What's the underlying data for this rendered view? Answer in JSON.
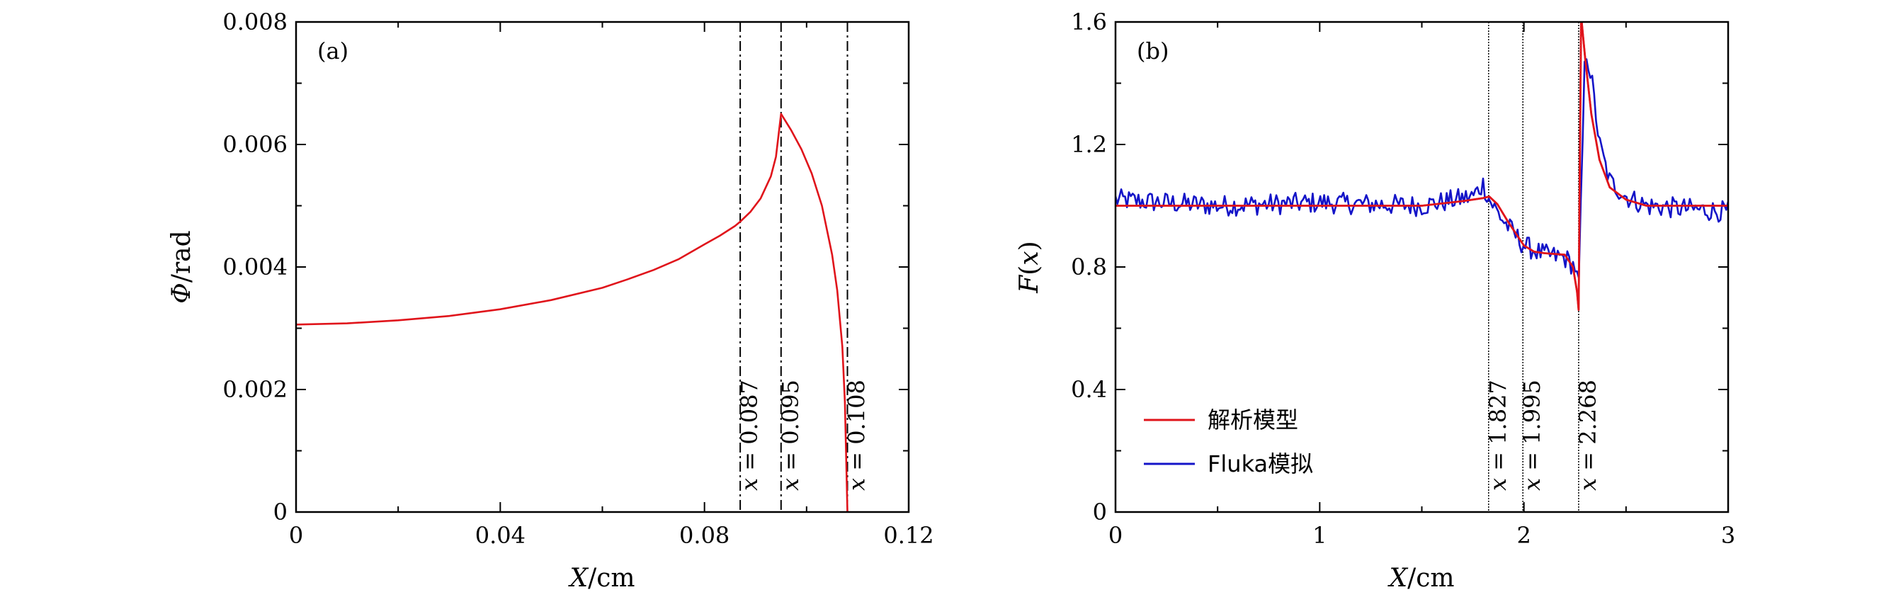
{
  "chart_data": [
    {
      "type": "line",
      "panel_label": "(a)",
      "xlabel": {
        "var": "X",
        "unit": "/cm"
      },
      "ylabel": {
        "var": "Φ",
        "unit": "/rad"
      },
      "xlim": [
        0,
        0.12
      ],
      "ylim": [
        0,
        0.008
      ],
      "xticks": [
        {
          "value": 0,
          "label": "0"
        },
        {
          "value": 0.04,
          "label": "0.04"
        },
        {
          "value": 0.08,
          "label": "0.08"
        },
        {
          "value": 0.12,
          "label": "0.12"
        }
      ],
      "yticks": [
        {
          "value": 0,
          "label": "0"
        },
        {
          "value": 0.002,
          "label": "0.002"
        },
        {
          "value": 0.004,
          "label": "0.004"
        },
        {
          "value": 0.006,
          "label": "0.006"
        },
        {
          "value": 0.008,
          "label": "0.008"
        }
      ],
      "vlines": [
        {
          "x": 0.087,
          "label": {
            "var": "x",
            "rest": " = 0.087"
          }
        },
        {
          "x": 0.095,
          "label": {
            "var": "x",
            "rest": " = 0.095"
          }
        },
        {
          "x": 0.108,
          "label": {
            "var": "x",
            "rest": " = 0.108"
          }
        }
      ],
      "series": [
        {
          "color": "#e0141b",
          "x": [
            0,
            0.01,
            0.02,
            0.03,
            0.04,
            0.05,
            0.06,
            0.065,
            0.07,
            0.075,
            0.08,
            0.083,
            0.086,
            0.087,
            0.089,
            0.091,
            0.093,
            0.094,
            0.095,
            0.097,
            0.099,
            0.101,
            0.103,
            0.105,
            0.106,
            0.107,
            0.1075,
            0.108
          ],
          "y": [
            0.00306,
            0.00308,
            0.00313,
            0.0032,
            0.00331,
            0.00346,
            0.00366,
            0.0038,
            0.00395,
            0.00413,
            0.00437,
            0.00451,
            0.00467,
            0.00474,
            0.0049,
            0.00512,
            0.00548,
            0.0058,
            0.0065,
            0.00623,
            0.00592,
            0.00553,
            0.005,
            0.0042,
            0.00362,
            0.0027,
            0.0018,
            0.0
          ]
        }
      ]
    },
    {
      "type": "line",
      "panel_label": "(b)",
      "xlabel": {
        "var": "X",
        "unit": "/cm"
      },
      "ylabel": {
        "var": "F",
        "unit": "(x)"
      },
      "xlim": [
        0,
        3
      ],
      "ylim": [
        0,
        1.6
      ],
      "xticks": [
        {
          "value": 0,
          "label": "0"
        },
        {
          "value": 1,
          "label": "1"
        },
        {
          "value": 2,
          "label": "2"
        },
        {
          "value": 3,
          "label": "3"
        }
      ],
      "yticks": [
        {
          "value": 0,
          "label": "0"
        },
        {
          "value": 0.4,
          "label": "0.4"
        },
        {
          "value": 0.8,
          "label": "0.8"
        },
        {
          "value": 1.2,
          "label": "1.2"
        },
        {
          "value": 1.6,
          "label": "1.6"
        }
      ],
      "vlines": [
        {
          "x": 1.827,
          "label": {
            "var": "x",
            "rest": " = 1.827"
          }
        },
        {
          "x": 1.995,
          "label": {
            "var": "x",
            "rest": " = 1.995"
          }
        },
        {
          "x": 2.268,
          "label": {
            "var": "x",
            "rest": " = 2.268"
          }
        }
      ],
      "legend": {
        "position": "lower-left"
      },
      "series": [
        {
          "name": "解析模型",
          "color": "#e0141b",
          "x": [
            0,
            0.5,
            1.0,
            1.5,
            1.7,
            1.8,
            1.83,
            1.87,
            1.92,
            1.97,
            2.0,
            2.05,
            2.1,
            2.2,
            2.24,
            2.26,
            2.268,
            2.28,
            2.3,
            2.33,
            2.37,
            2.42,
            2.5,
            2.6,
            2.8,
            3.0
          ],
          "y": [
            1.0,
            1.0,
            1.0,
            1.0,
            1.015,
            1.025,
            1.03,
            1.005,
            0.95,
            0.9,
            0.87,
            0.85,
            0.845,
            0.84,
            0.8,
            0.72,
            0.66,
            1.62,
            1.48,
            1.3,
            1.15,
            1.06,
            1.02,
            1.0,
            1.0,
            1.0
          ]
        },
        {
          "name": "Fluka模拟",
          "color": "#1414c8",
          "x": [
            0,
            0.5,
            1.0,
            1.5,
            1.75,
            1.8,
            1.83,
            1.9,
            2.0,
            2.1,
            2.2,
            2.25,
            2.268,
            2.3,
            2.33,
            2.37,
            2.42,
            2.5,
            2.6,
            3.0
          ],
          "y": [
            1.02,
            1.0,
            1.01,
            1.0,
            1.03,
            1.07,
            1.02,
            0.95,
            0.87,
            0.84,
            0.83,
            0.8,
            0.73,
            1.52,
            1.42,
            1.2,
            1.08,
            1.03,
            1.0,
            0.98
          ]
        }
      ]
    }
  ]
}
